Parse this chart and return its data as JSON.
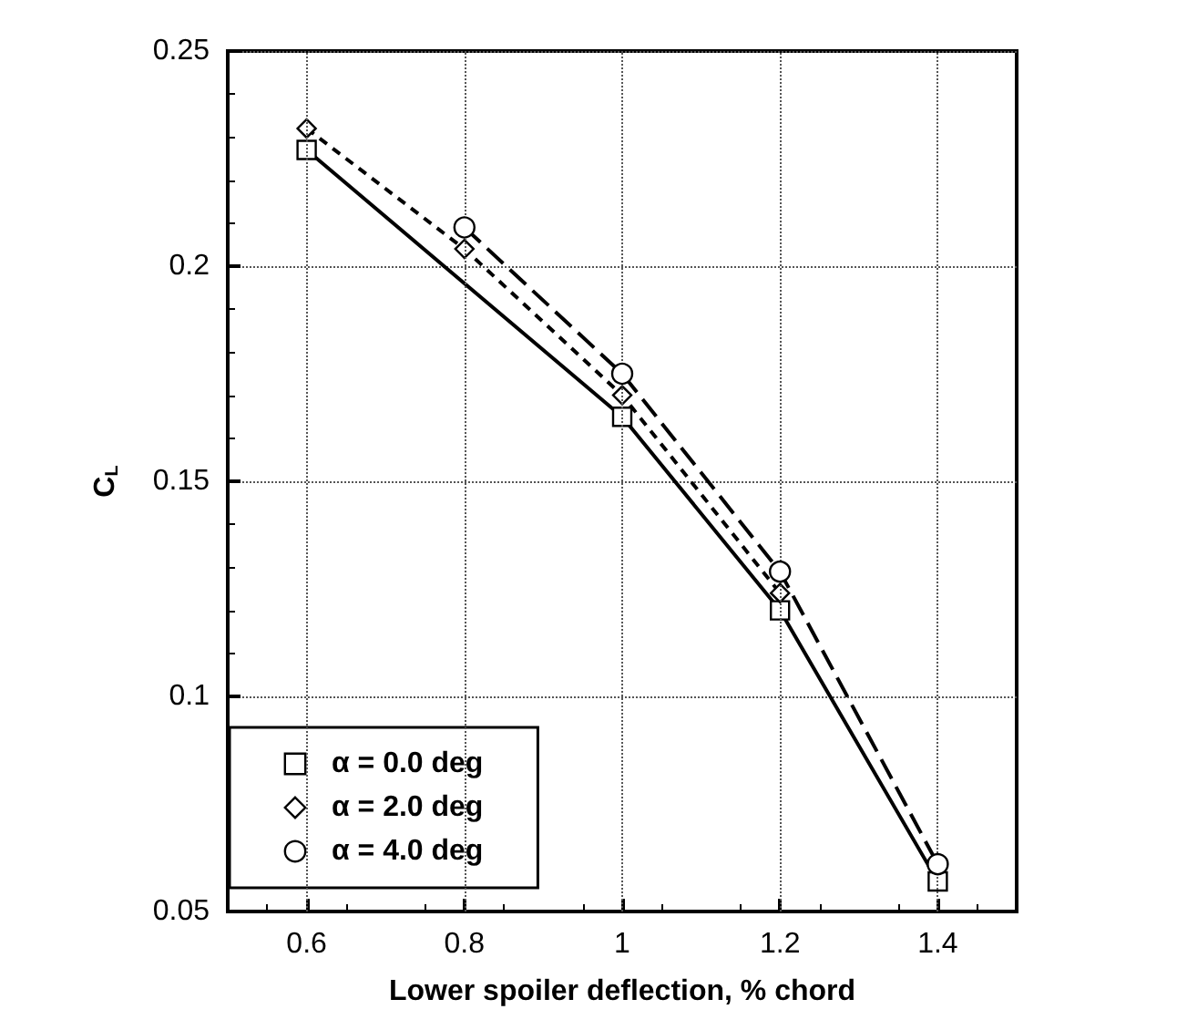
{
  "chart_data": {
    "type": "line",
    "xlabel": "Lower spoiler deflection, % chord",
    "ylabel": "C$_{L}$",
    "x": [
      0.6,
      0.8,
      1.0,
      1.2,
      1.4
    ],
    "series": [
      {
        "name": "α = 0.0 deg",
        "color": "#000000",
        "marker": "square",
        "line_style": "solid",
        "values": [
          0.227,
          null,
          0.165,
          0.12,
          0.057
        ]
      },
      {
        "name": "α = 2.0 deg",
        "color": "#000000",
        "marker": "diamond",
        "line_style": "dashed",
        "values": [
          0.232,
          0.204,
          0.17,
          0.124,
          null
        ]
      },
      {
        "name": "α = 4.0 deg",
        "color": "#000000",
        "marker": "circle",
        "line_style": "dashed",
        "values": [
          null,
          0.209,
          0.175,
          0.129,
          0.061
        ]
      }
    ],
    "xlim": [
      0.5,
      1.5
    ],
    "xticks": [
      0.6,
      0.8,
      1,
      1.2,
      1.4
    ],
    "ylim": [
      0.05,
      0.25
    ],
    "yticks": [
      0.05,
      0.1,
      0.15,
      0.2,
      0.25
    ],
    "grid": true,
    "legend": "bottom left"
  }
}
